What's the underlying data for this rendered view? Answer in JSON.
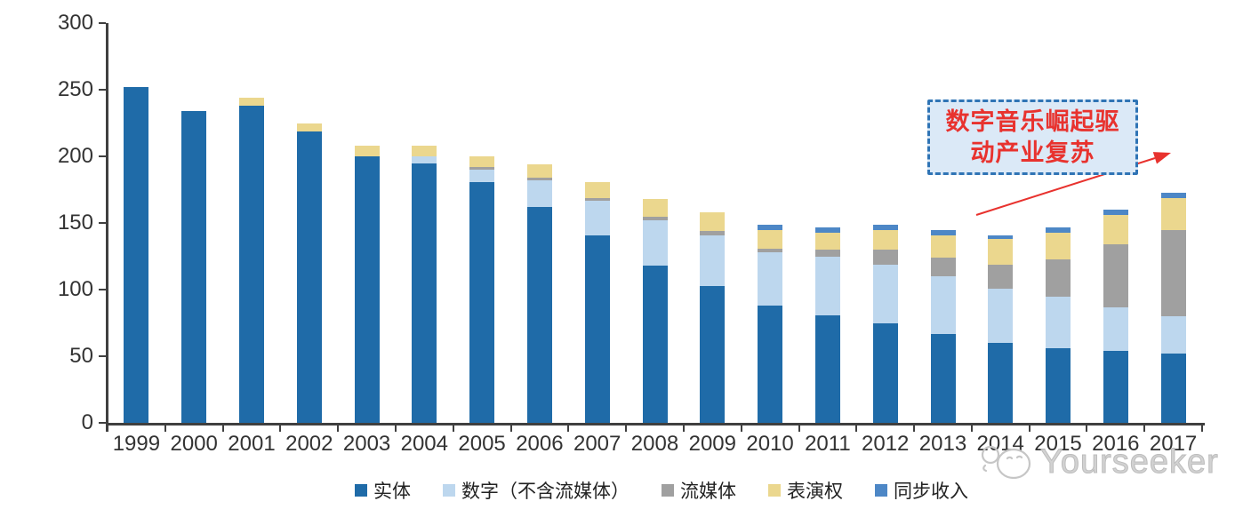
{
  "chart_data": {
    "type": "bar",
    "stacked": true,
    "title": "",
    "categories": [
      "1999",
      "2000",
      "2001",
      "2002",
      "2003",
      "2004",
      "2005",
      "2006",
      "2007",
      "2008",
      "2009",
      "2010",
      "2011",
      "2012",
      "2013",
      "2014",
      "2015",
      "2016",
      "2017"
    ],
    "series": [
      {
        "name": "实体",
        "color": "#1F6BA8",
        "values": [
          252,
          234,
          238,
          219,
          200,
          195,
          181,
          162,
          141,
          118,
          103,
          88,
          81,
          75,
          67,
          60,
          56,
          54,
          52
        ]
      },
      {
        "name": "数字（不含流媒体）",
        "color": "#BDD7EE",
        "values": [
          0,
          0,
          0,
          0,
          0,
          5,
          9,
          20,
          26,
          34,
          38,
          40,
          44,
          44,
          43,
          41,
          39,
          33,
          28
        ]
      },
      {
        "name": "流媒体",
        "color": "#A0A0A0",
        "values": [
          0,
          0,
          0,
          0,
          0,
          0,
          2,
          2,
          2,
          3,
          3,
          3,
          5,
          11,
          14,
          18,
          28,
          47,
          65
        ]
      },
      {
        "name": "表演权",
        "color": "#EBD78E",
        "values": [
          0,
          0,
          6,
          6,
          8,
          8,
          8,
          10,
          12,
          13,
          14,
          14,
          13,
          15,
          17,
          19,
          20,
          22,
          24
        ]
      },
      {
        "name": "同步收入",
        "color": "#4D87C6",
        "values": [
          0,
          0,
          0,
          0,
          0,
          0,
          0,
          0,
          0,
          0,
          0,
          4,
          4,
          4,
          4,
          3,
          4,
          4,
          4
        ]
      }
    ],
    "ylim": [
      0,
      300
    ],
    "yticks": [
      0,
      50,
      100,
      150,
      200,
      250,
      300
    ],
    "grid": false,
    "legend_position": "bottom",
    "annotation": {
      "line1": "数字音乐崛起驱",
      "line2": "动产业复苏",
      "text_color": "#E8322E",
      "arrow_color": "#E8322E",
      "box_border_color": "#2F74B5",
      "box_fill_color": "#DBE9F7"
    }
  },
  "watermark": {
    "text": "Yourseeker"
  }
}
